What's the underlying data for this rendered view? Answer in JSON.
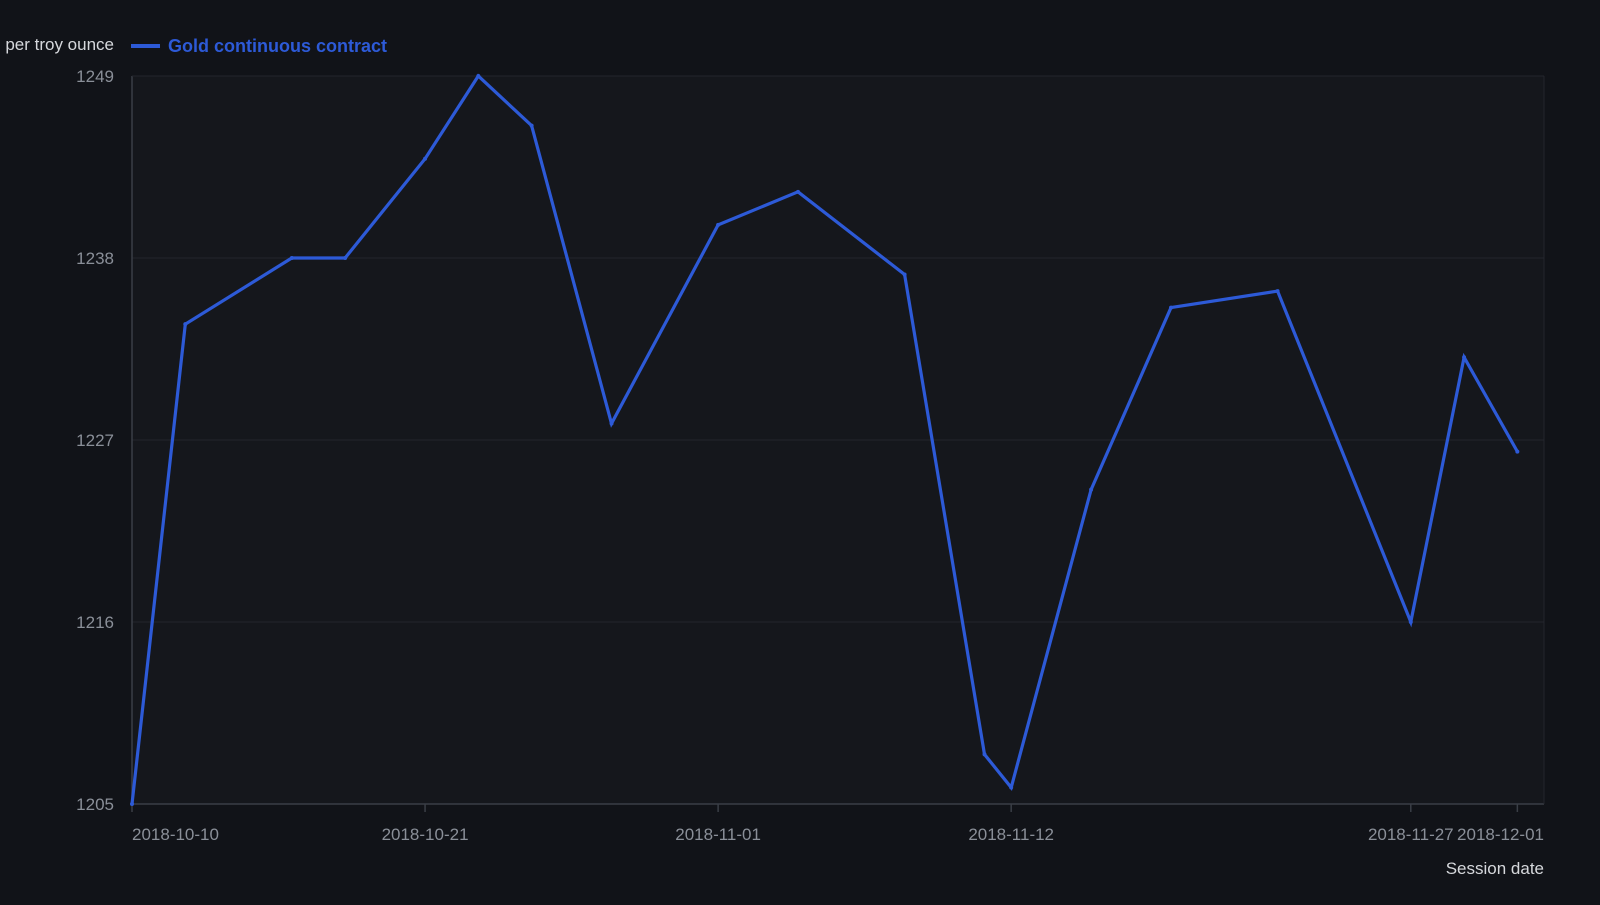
{
  "colors": {
    "background": "#111318",
    "plot_background": "#15171c",
    "line": "#2d5ad7",
    "grid": "#23262d",
    "axis": "#3a3e46",
    "tick_text": "#8a8f98",
    "label_text": "#d6d8dc"
  },
  "chart_data": {
    "type": "line",
    "title": "",
    "ylabel": "per troy ounce",
    "xlabel": "Session date",
    "ylim": [
      1205,
      1249
    ],
    "y_ticks": [
      1205,
      1216,
      1227,
      1238,
      1249
    ],
    "x_ticks": [
      "2018-10-10",
      "2018-10-21",
      "2018-11-01",
      "2018-11-12",
      "2018-11-27",
      "2018-12-01"
    ],
    "x_range": [
      "2018-10-10",
      "2018-12-02"
    ],
    "grid": true,
    "legend_position": "top-left",
    "series": [
      {
        "name": "Gold continuous contract",
        "points": [
          {
            "x": "2018-10-10",
            "y": 1205.0
          },
          {
            "x": "2018-10-12",
            "y": 1234.0
          },
          {
            "x": "2018-10-16",
            "y": 1238.0
          },
          {
            "x": "2018-10-18",
            "y": 1238.0
          },
          {
            "x": "2018-10-21",
            "y": 1244.0
          },
          {
            "x": "2018-10-23",
            "y": 1249.0
          },
          {
            "x": "2018-10-25",
            "y": 1246.0
          },
          {
            "x": "2018-10-28",
            "y": 1228.0
          },
          {
            "x": "2018-11-01",
            "y": 1240.0
          },
          {
            "x": "2018-11-04",
            "y": 1242.0
          },
          {
            "x": "2018-11-08",
            "y": 1237.0
          },
          {
            "x": "2018-11-11",
            "y": 1208.0
          },
          {
            "x": "2018-11-12",
            "y": 1206.0
          },
          {
            "x": "2018-11-15",
            "y": 1224.0
          },
          {
            "x": "2018-11-18",
            "y": 1235.0
          },
          {
            "x": "2018-11-22",
            "y": 1236.0
          },
          {
            "x": "2018-11-27",
            "y": 1216.0
          },
          {
            "x": "2018-11-29",
            "y": 1232.0
          },
          {
            "x": "2018-12-01",
            "y": 1226.3
          }
        ]
      }
    ]
  }
}
